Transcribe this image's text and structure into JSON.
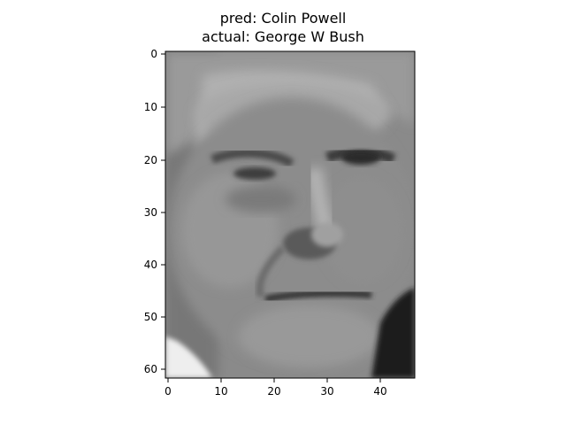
{
  "figure": {
    "title_pred": "pred: Colin Powell",
    "title_actual": "actual: George W Bush"
  },
  "axes": {
    "x_ticks": [
      "0",
      "10",
      "20",
      "30",
      "40"
    ],
    "y_ticks": [
      "0",
      "10",
      "20",
      "30",
      "40",
      "50",
      "60"
    ],
    "image_cols": 47,
    "image_rows": 62,
    "colormap": "gray"
  },
  "image_subject": "grayscale face photograph"
}
